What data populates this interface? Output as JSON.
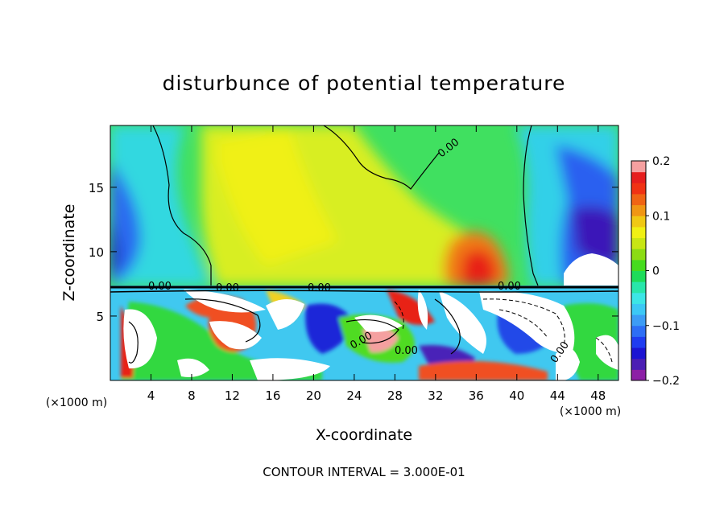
{
  "chart_data": {
    "type": "heatmap",
    "title": "disturbunce of potential temperature",
    "xlabel": "X-coordinate",
    "ylabel": "Z-coordinate",
    "x_unit_left": "(×1000 m)",
    "x_unit_right": "(×1000 m)",
    "xlim": [
      0,
      50
    ],
    "ylim": [
      0,
      19.8
    ],
    "x_ticks": [
      4,
      8,
      12,
      16,
      20,
      24,
      28,
      32,
      36,
      40,
      44,
      48
    ],
    "x_tick_labels": [
      "4",
      "8",
      "12",
      "16",
      "20",
      "24",
      "28",
      "32",
      "36",
      "40",
      "44",
      "48"
    ],
    "y_ticks": [
      5,
      10,
      15
    ],
    "y_tick_labels": [
      "5",
      "10",
      "15"
    ],
    "colorbar": {
      "range": [
        -0.2,
        0.2
      ],
      "ticks": [
        -0.2,
        -0.1,
        0,
        0.1,
        0.2
      ],
      "tick_labels": [
        "−0.2",
        "−0.1",
        "0",
        "0.1",
        "0.2"
      ],
      "colors": [
        "#8c1fa6",
        "#4b1fb4",
        "#1c14d2",
        "#1f3cf0",
        "#2d6ef5",
        "#3c9cf5",
        "#3cc8f5",
        "#3ce6e6",
        "#28e6aa",
        "#1edc5a",
        "#46dc1e",
        "#8cdc14",
        "#c8e614",
        "#f0f014",
        "#f0c814",
        "#f09614",
        "#f06414",
        "#f03214",
        "#e61e1e",
        "#f5a0a0"
      ]
    },
    "contour_labels": [
      "0.00",
      "0.00",
      "0.00",
      "0.00",
      "0.00",
      "0.00",
      "0.00",
      "0.00"
    ],
    "contour_interval": "CONTOUR INTERVAL = 3.000E-01",
    "grid": false
  },
  "colors": {
    "background": "#ffffff",
    "axis": "#000000"
  }
}
